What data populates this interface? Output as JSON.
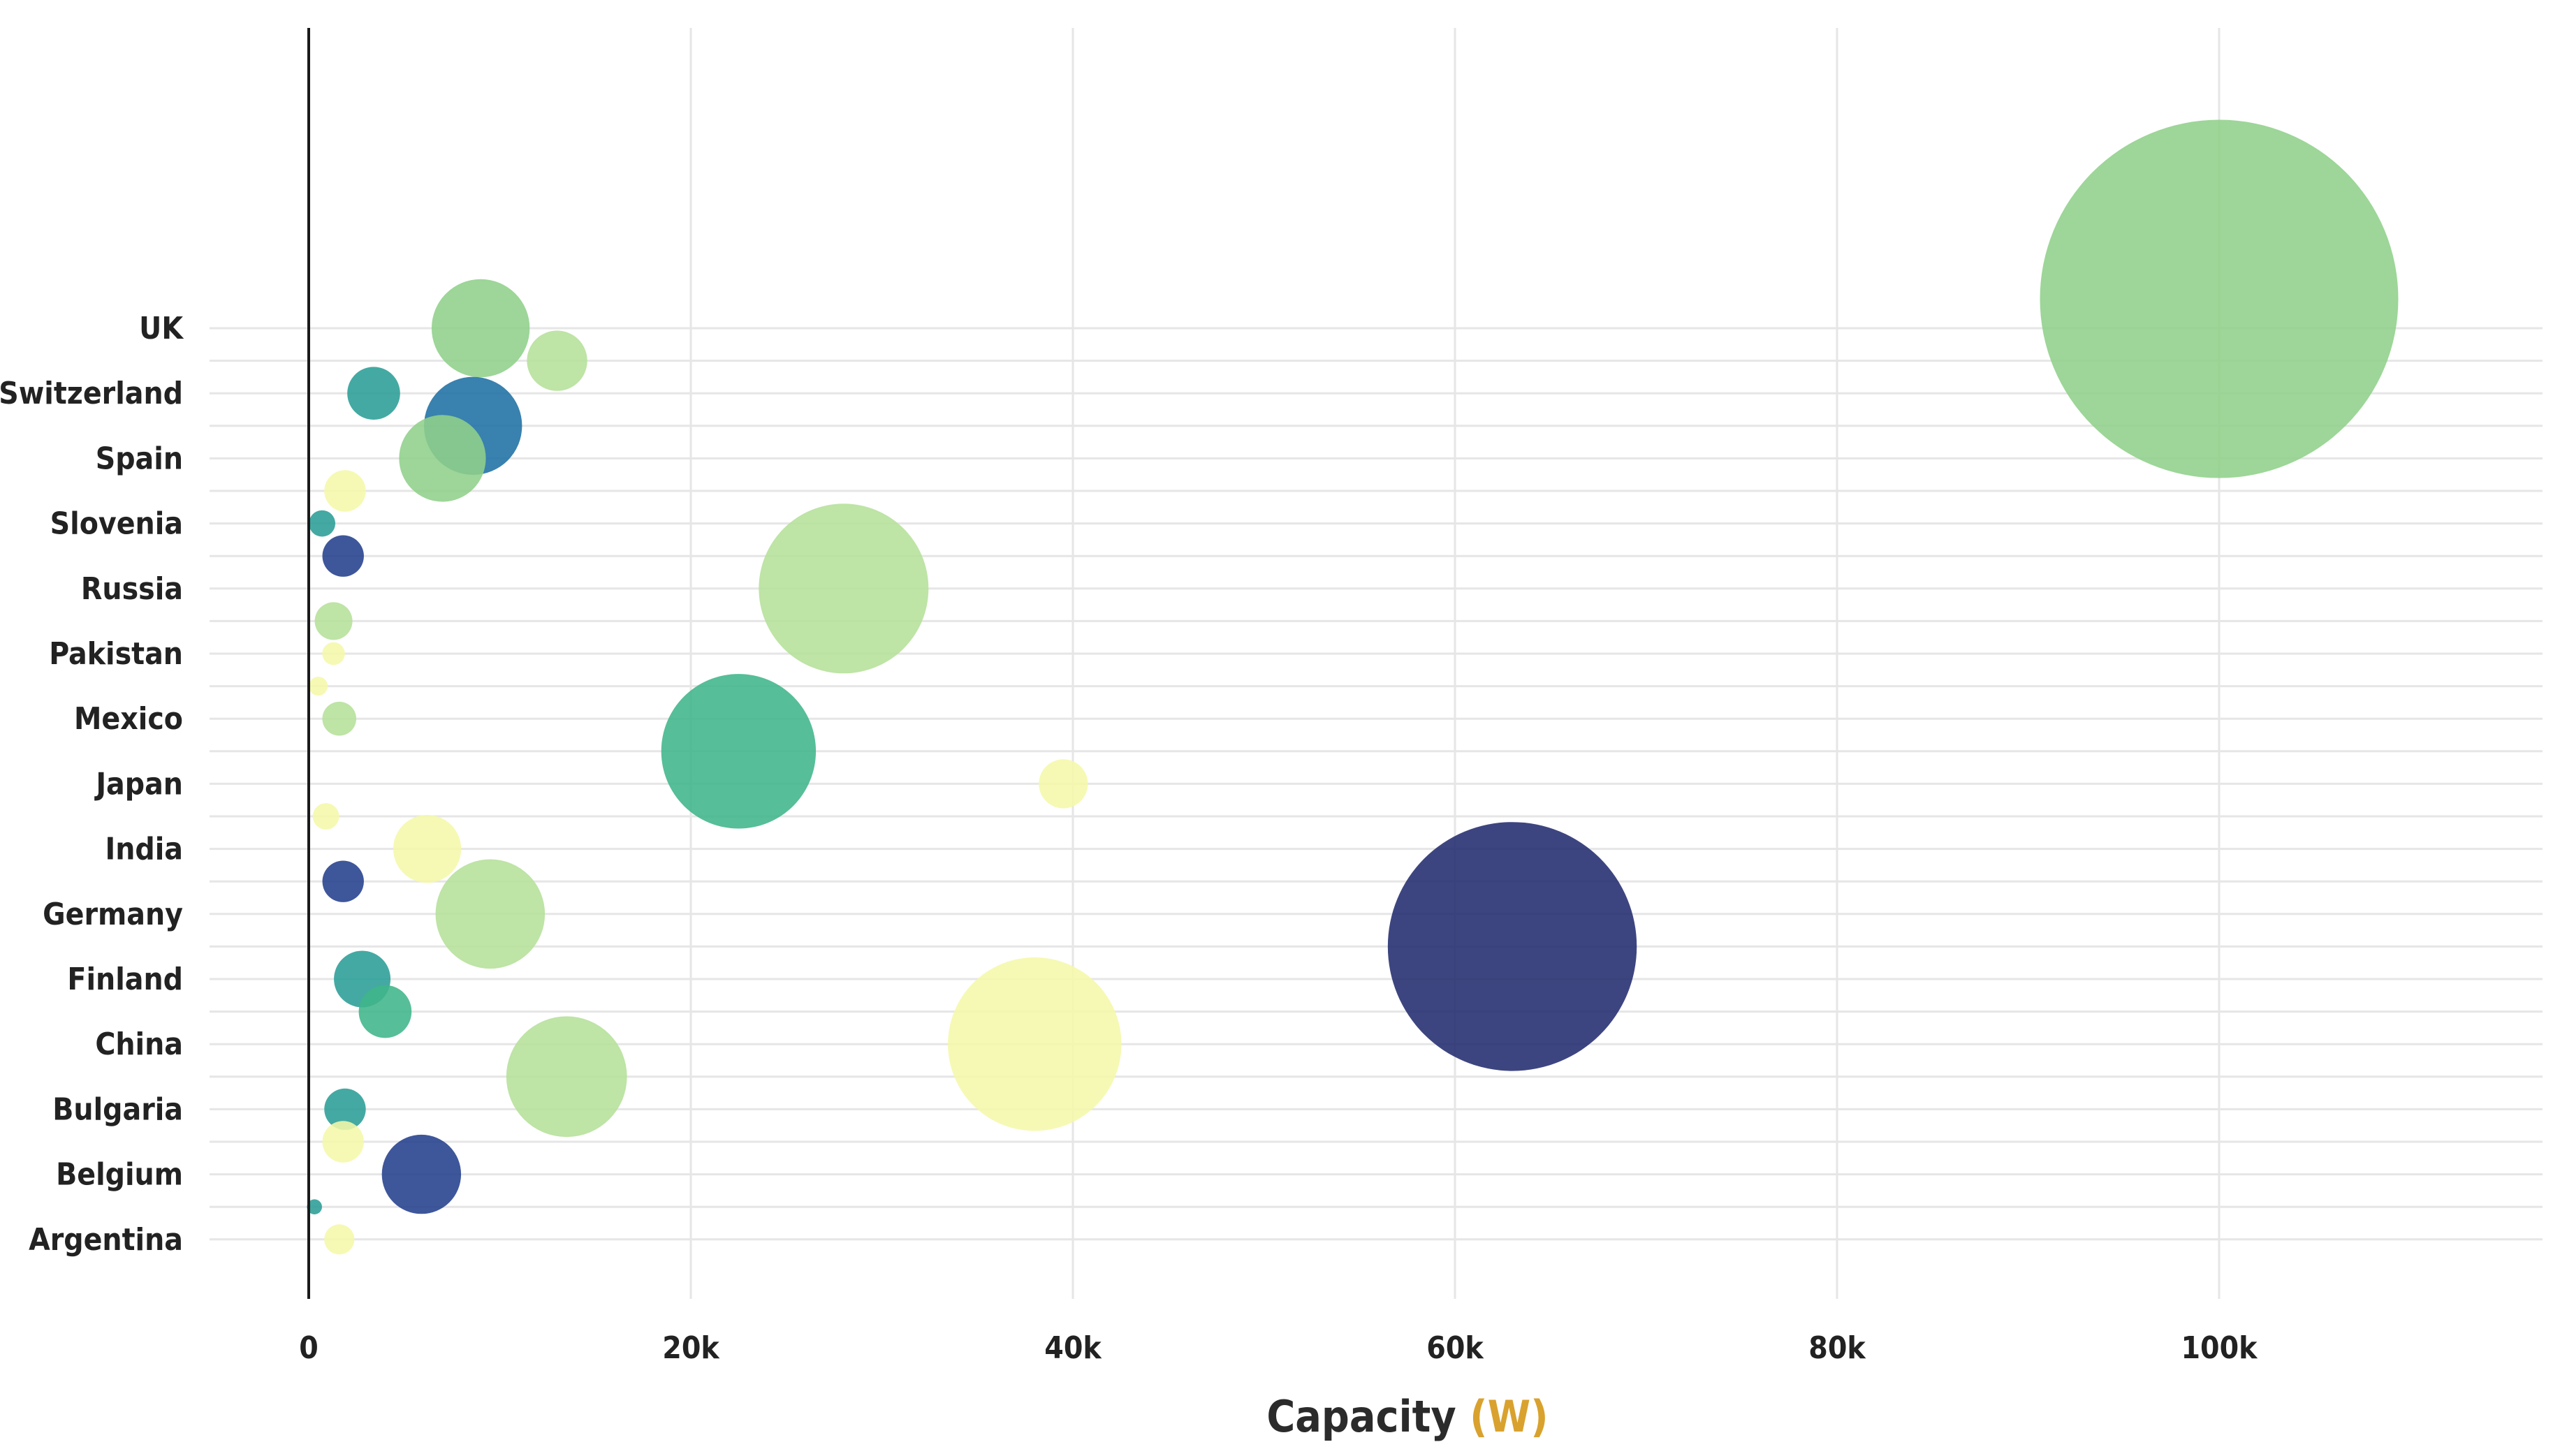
{
  "chart_data": {
    "type": "scatter",
    "subtype": "bubble",
    "title": "",
    "xlabel": "Capacity",
    "xlabel_unit": "(W)",
    "ylabel": "",
    "xlim": [
      -40000,
      117000
    ],
    "x_ticks": [
      0,
      20000,
      40000,
      60000,
      80000,
      100000
    ],
    "x_tick_labels": [
      "0",
      "20k",
      "40k",
      "60k",
      "80k",
      "100k"
    ],
    "categories": [
      "Argentina",
      "Belgium",
      "Bulgaria",
      "China",
      "Finland",
      "Germany",
      "India",
      "Japan",
      "Mexico",
      "Pakistan",
      "Russia",
      "Slovenia",
      "Spain",
      "Switzerland",
      "UK"
    ],
    "grid": true,
    "legend": "none",
    "colors": {
      "yellow": "#f5f8a8",
      "light_green": "#b5e09a",
      "green": "#8fd08a",
      "teal_green": "#3fb58a",
      "teal": "#2a9d96",
      "blue": "#1e6fa3",
      "dark_blue": "#233f8c",
      "navy": "#222b6e",
      "axis_unit": "#d9a22e"
    },
    "points": [
      {
        "category": "UK",
        "offset": 0.45,
        "x": 100000,
        "size": 9.5,
        "color": "green"
      },
      {
        "category": "UK",
        "offset": 0,
        "x": 9000,
        "size": 2.6,
        "color": "green"
      },
      {
        "category": "UK",
        "offset": -0.5,
        "x": 13000,
        "size": 1.6,
        "color": "light_green"
      },
      {
        "category": "Switzerland",
        "offset": 0,
        "x": 3400,
        "size": 1.4,
        "color": "teal"
      },
      {
        "category": "Spain",
        "offset": 0.5,
        "x": 8600,
        "size": 2.6,
        "color": "blue"
      },
      {
        "category": "Spain",
        "offset": 0,
        "x": 7000,
        "size": 2.3,
        "color": "green"
      },
      {
        "category": "Spain",
        "offset": -0.5,
        "x": 1900,
        "size": 1.1,
        "color": "yellow"
      },
      {
        "category": "Slovenia",
        "offset": 0,
        "x": 700,
        "size": 0.7,
        "color": "teal"
      },
      {
        "category": "Slovenia",
        "offset": -0.5,
        "x": 1800,
        "size": 1.1,
        "color": "dark_blue"
      },
      {
        "category": "Russia",
        "offset": 0,
        "x": 28000,
        "size": 4.5,
        "color": "light_green"
      },
      {
        "category": "Russia",
        "offset": -0.5,
        "x": 1300,
        "size": 1.0,
        "color": "light_green"
      },
      {
        "category": "Pakistan",
        "offset": 0,
        "x": 1300,
        "size": 0.6,
        "color": "yellow"
      },
      {
        "category": "Pakistan",
        "offset": -0.5,
        "x": 500,
        "size": 0.5,
        "color": "yellow"
      },
      {
        "category": "Mexico",
        "offset": 0,
        "x": 1600,
        "size": 0.9,
        "color": "light_green"
      },
      {
        "category": "Mexico",
        "offset": -0.5,
        "x": 22500,
        "size": 4.1,
        "color": "teal_green"
      },
      {
        "category": "Japan",
        "offset": 0,
        "x": 39500,
        "size": 1.3,
        "color": "yellow"
      },
      {
        "category": "Japan",
        "offset": -0.5,
        "x": 900,
        "size": 0.7,
        "color": "yellow"
      },
      {
        "category": "India",
        "offset": 0,
        "x": 6200,
        "size": 1.8,
        "color": "yellow"
      },
      {
        "category": "India",
        "offset": -0.5,
        "x": 1800,
        "size": 1.1,
        "color": "dark_blue"
      },
      {
        "category": "Germany",
        "offset": 0,
        "x": 9500,
        "size": 2.9,
        "color": "light_green"
      },
      {
        "category": "Germany",
        "offset": -0.5,
        "x": 63000,
        "size": 6.6,
        "color": "navy"
      },
      {
        "category": "Finland",
        "offset": 0,
        "x": 2800,
        "size": 1.5,
        "color": "teal"
      },
      {
        "category": "Finland",
        "offset": -0.5,
        "x": 4000,
        "size": 1.4,
        "color": "teal_green"
      },
      {
        "category": "China",
        "offset": 0,
        "x": 38000,
        "size": 4.6,
        "color": "yellow"
      },
      {
        "category": "China",
        "offset": -0.5,
        "x": 13500,
        "size": 3.2,
        "color": "light_green"
      },
      {
        "category": "Bulgaria",
        "offset": 0,
        "x": 1900,
        "size": 1.1,
        "color": "teal"
      },
      {
        "category": "Bulgaria",
        "offset": -0.5,
        "x": 1800,
        "size": 1.1,
        "color": "yellow"
      },
      {
        "category": "Belgium",
        "offset": 0,
        "x": 5900,
        "size": 2.1,
        "color": "dark_blue"
      },
      {
        "category": "Belgium",
        "offset": -0.5,
        "x": 300,
        "size": 0.4,
        "color": "teal"
      },
      {
        "category": "Argentina",
        "offset": 0,
        "x": 1600,
        "size": 0.8,
        "color": "yellow"
      }
    ]
  }
}
